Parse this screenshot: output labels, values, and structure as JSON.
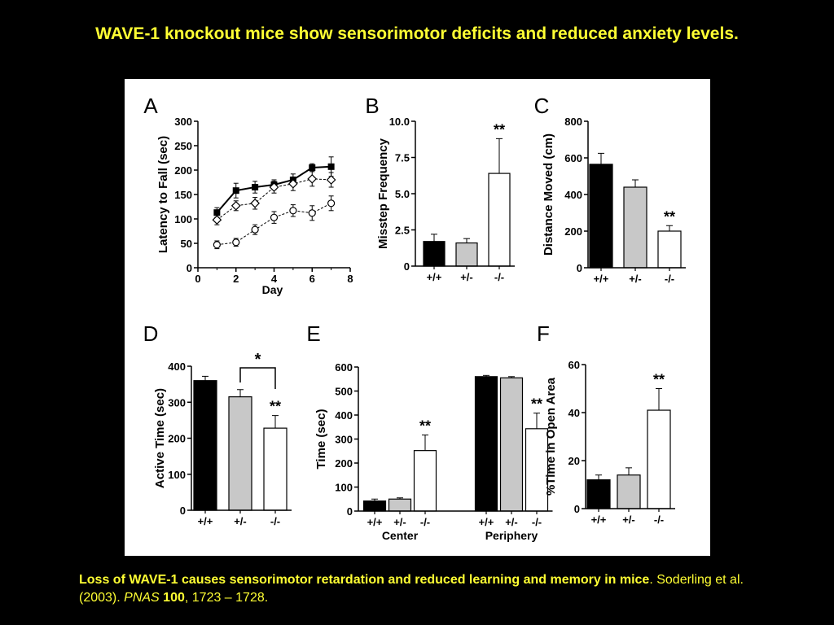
{
  "slide": {
    "title": "WAVE-1 knockout mice show sensorimotor deficits and reduced anxiety levels."
  },
  "caption": {
    "bold": "Loss of WAVE-1 causes sensorimotor retardation and reduced learning and memory in mice",
    "citation_authors": ". Soderling et al. (2003). ",
    "journal": "PNAS",
    "volume": "100",
    "pages": ", 1723 – 1728."
  },
  "colors": {
    "background": "#000000",
    "title": "#ffff33",
    "wt_bar": "#000000",
    "het_bar": "#c8c8c8",
    "ko_bar": "#ffffff"
  },
  "chart_data": [
    {
      "panel": "A",
      "type": "line",
      "xlabel": "Day",
      "ylabel": "Latency to Fall (sec)",
      "xlim": [
        0,
        8
      ],
      "ylim": [
        0,
        300
      ],
      "xticks": [
        "0",
        "2",
        "4",
        "6",
        "8"
      ],
      "yticks": [
        "0",
        "50",
        "100",
        "150",
        "200",
        "250",
        "300"
      ],
      "x": [
        1,
        2,
        3,
        4,
        5,
        6,
        7
      ],
      "series": [
        {
          "marker": "square-filled",
          "values": [
            113,
            158,
            165,
            170,
            180,
            205,
            207
          ],
          "errors": [
            10,
            15,
            12,
            10,
            12,
            8,
            20
          ]
        },
        {
          "marker": "diamond-open",
          "values": [
            98,
            127,
            132,
            165,
            172,
            182,
            180
          ],
          "errors": [
            10,
            10,
            12,
            12,
            14,
            15,
            15
          ]
        },
        {
          "marker": "circle-open",
          "values": [
            47,
            52,
            78,
            103,
            117,
            112,
            132
          ],
          "errors": [
            8,
            8,
            10,
            12,
            12,
            15,
            15
          ]
        }
      ]
    },
    {
      "panel": "B",
      "type": "bar",
      "ylabel": "Misstep Frequency",
      "ylim": [
        0,
        10
      ],
      "yticks": [
        "0",
        "2.5",
        "5.0",
        "7.5",
        "10.0"
      ],
      "categories": [
        "+/+",
        "+/-",
        "-/-"
      ],
      "values": [
        1.7,
        1.6,
        6.4
      ],
      "errors": [
        0.5,
        0.3,
        2.4
      ],
      "annotations": [
        "",
        "",
        "**"
      ]
    },
    {
      "panel": "C",
      "type": "bar",
      "ylabel": "Distance Moved (cm)",
      "ylim": [
        0,
        800
      ],
      "yticks": [
        "0",
        "200",
        "400",
        "600",
        "800"
      ],
      "categories": [
        "+/+",
        "+/-",
        "-/-"
      ],
      "values": [
        565,
        440,
        200
      ],
      "errors": [
        60,
        40,
        30
      ],
      "annotations": [
        "",
        "",
        "**"
      ]
    },
    {
      "panel": "D",
      "type": "bar",
      "ylabel": "Active Time (sec)",
      "ylim": [
        0,
        400
      ],
      "yticks": [
        "0",
        "100",
        "200",
        "300",
        "400"
      ],
      "categories": [
        "+/+",
        "+/-",
        "-/-"
      ],
      "values": [
        360,
        315,
        228
      ],
      "errors": [
        12,
        20,
        35
      ],
      "annotations": [
        "",
        "",
        "**"
      ],
      "bracket_label": "*"
    },
    {
      "panel": "E",
      "type": "bar",
      "ylabel": "Time (sec)",
      "ylim": [
        0,
        600
      ],
      "yticks": [
        "0",
        "100",
        "200",
        "300",
        "400",
        "500",
        "600"
      ],
      "groups": [
        {
          "name": "Center",
          "categories": [
            "+/+",
            "+/-",
            "-/-"
          ],
          "values": [
            42,
            50,
            252
          ],
          "errors": [
            8,
            5,
            65
          ],
          "annotations": [
            "",
            "",
            "**"
          ]
        },
        {
          "name": "Periphery",
          "categories": [
            "+/+",
            "+/-",
            "-/-"
          ],
          "values": [
            560,
            555,
            343
          ],
          "errors": [
            5,
            5,
            65
          ],
          "annotations": [
            "",
            "",
            "**"
          ]
        }
      ]
    },
    {
      "panel": "F",
      "type": "bar",
      "ylabel": "%Time in Open Area",
      "ylim": [
        0,
        60
      ],
      "yticks": [
        "0",
        "20",
        "40",
        "60"
      ],
      "categories": [
        "+/+",
        "+/-",
        "-/-"
      ],
      "values": [
        12,
        14,
        41
      ],
      "errors": [
        2,
        3,
        9
      ],
      "annotations": [
        "",
        "",
        "**"
      ]
    }
  ]
}
